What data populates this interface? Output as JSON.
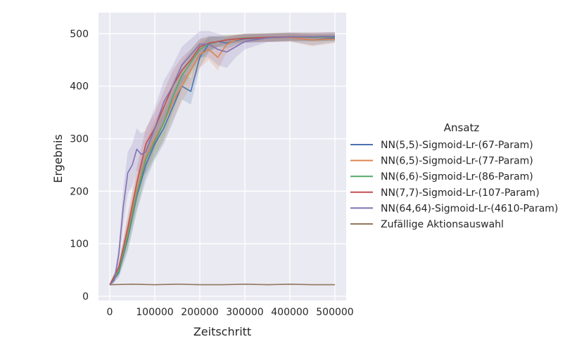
{
  "chart_data": {
    "type": "line",
    "xlabel": "Zeitschritt",
    "ylabel": "Ergebnis",
    "xlim": [
      -25000,
      525000
    ],
    "ylim": [
      -8,
      540
    ],
    "xticks": [
      0,
      100000,
      200000,
      300000,
      400000,
      500000
    ],
    "xtick_labels": [
      "0",
      "100000",
      "200000",
      "300000",
      "400000",
      "500000"
    ],
    "yticks": [
      0,
      100,
      200,
      300,
      400,
      500
    ],
    "ytick_labels": [
      "0",
      "100",
      "200",
      "300",
      "400",
      "500"
    ],
    "grid": true,
    "legend_title": "Ansatz",
    "legend_position": "right-outside",
    "series": [
      {
        "name": "NN(5,5)-Sigmoid-Lr-(67-Param)",
        "color": "#4c72b0",
        "x": [
          0,
          20000,
          40000,
          60000,
          80000,
          100000,
          120000,
          140000,
          160000,
          180000,
          200000,
          220000,
          240000,
          260000,
          280000,
          300000,
          350000,
          400000,
          450000,
          500000
        ],
        "y": [
          22,
          45,
          110,
          190,
          250,
          290,
          320,
          360,
          400,
          390,
          455,
          480,
          485,
          482,
          487,
          490,
          492,
          493,
          488,
          492
        ],
        "band": [
          2,
          10,
          25,
          30,
          30,
          30,
          30,
          30,
          25,
          25,
          20,
          15,
          10,
          10,
          10,
          8,
          8,
          8,
          10,
          8
        ]
      },
      {
        "name": "NN(6,5)-Sigmoid-Lr-(77-Param)",
        "color": "#dd8452",
        "x": [
          0,
          20000,
          40000,
          60000,
          80000,
          100000,
          120000,
          140000,
          160000,
          180000,
          200000,
          220000,
          240000,
          260000,
          280000,
          300000,
          350000,
          400000,
          450000,
          500000
        ],
        "y": [
          22,
          50,
          120,
          200,
          265,
          300,
          330,
          370,
          400,
          430,
          460,
          470,
          455,
          480,
          488,
          492,
          492,
          493,
          488,
          490
        ],
        "band": [
          2,
          10,
          25,
          30,
          30,
          35,
          35,
          35,
          30,
          30,
          25,
          20,
          25,
          15,
          10,
          8,
          8,
          8,
          12,
          8
        ]
      },
      {
        "name": "NN(6,6)-Sigmoid-Lr-(86-Param)",
        "color": "#55a868",
        "x": [
          0,
          20000,
          40000,
          60000,
          80000,
          100000,
          120000,
          140000,
          160000,
          180000,
          200000,
          220000,
          240000,
          260000,
          280000,
          300000,
          350000,
          400000,
          450000,
          500000
        ],
        "y": [
          22,
          48,
          115,
          195,
          260,
          295,
          330,
          380,
          420,
          445,
          470,
          480,
          485,
          488,
          490,
          492,
          493,
          494,
          493,
          494
        ],
        "band": [
          2,
          10,
          25,
          30,
          30,
          30,
          30,
          30,
          25,
          25,
          20,
          15,
          10,
          10,
          8,
          8,
          8,
          8,
          8,
          8
        ]
      },
      {
        "name": "NN(7,7)-Sigmoid-Lr-(107-Param)",
        "color": "#c44e52",
        "x": [
          0,
          20000,
          40000,
          60000,
          80000,
          100000,
          120000,
          140000,
          160000,
          180000,
          200000,
          220000,
          240000,
          260000,
          280000,
          300000,
          350000,
          400000,
          450000,
          500000
        ],
        "y": [
          22,
          55,
          130,
          215,
          290,
          320,
          360,
          400,
          430,
          450,
          475,
          482,
          485,
          488,
          490,
          491,
          493,
          494,
          494,
          495
        ],
        "band": [
          2,
          10,
          25,
          30,
          30,
          30,
          30,
          30,
          25,
          20,
          15,
          12,
          10,
          8,
          8,
          8,
          8,
          8,
          8,
          8
        ]
      },
      {
        "name": "NN(64,64)-Sigmoid-Lr-(4610-Param)",
        "color": "#8172b3",
        "x": [
          0,
          10000,
          20000,
          30000,
          40000,
          50000,
          60000,
          70000,
          80000,
          100000,
          120000,
          140000,
          160000,
          180000,
          200000,
          220000,
          240000,
          260000,
          280000,
          300000,
          350000,
          400000,
          450000,
          500000
        ],
        "y": [
          22,
          30,
          80,
          170,
          235,
          250,
          280,
          270,
          275,
          320,
          370,
          400,
          440,
          460,
          480,
          480,
          470,
          465,
          475,
          485,
          492,
          494,
          494,
          495
        ],
        "band": [
          2,
          5,
          20,
          35,
          40,
          40,
          40,
          40,
          40,
          40,
          40,
          40,
          35,
          30,
          25,
          25,
          30,
          30,
          20,
          15,
          8,
          8,
          8,
          8
        ]
      },
      {
        "name": "Zufällige Aktionsauswahl",
        "color": "#937860",
        "x": [
          0,
          50000,
          100000,
          150000,
          200000,
          250000,
          300000,
          350000,
          400000,
          450000,
          500000
        ],
        "y": [
          22,
          23,
          22,
          23,
          22,
          22,
          23,
          22,
          23,
          22,
          22
        ],
        "band": [
          1,
          1,
          1,
          1,
          1,
          1,
          1,
          1,
          1,
          1,
          1
        ]
      }
    ]
  }
}
